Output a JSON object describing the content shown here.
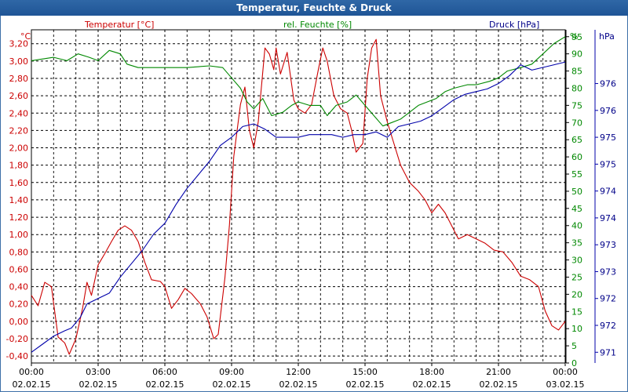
{
  "window": {
    "title": "Temperatur, Feuchte & Druck"
  },
  "colors": {
    "temperature": "#cc0000",
    "humidity": "#008800",
    "pressure": "#0000aa"
  },
  "chart_data": {
    "type": "line",
    "title": "Temperatur, Feuchte & Druck",
    "grid": true,
    "axes": {
      "temperature": {
        "label": "Temperatur [°C]",
        "unit": "°C",
        "ylim": [
          -0.48,
          3.36
        ],
        "ticks": [
          "-0,40",
          "-0,20",
          "0,00",
          "0,20",
          "0,40",
          "0,60",
          "0,80",
          "1,00",
          "1,20",
          "1,40",
          "1,60",
          "1,80",
          "2,00",
          "2,20",
          "2,40",
          "2,60",
          "2,80",
          "3,00",
          "3,20"
        ]
      },
      "humidity": {
        "label": "rel. Feuchte [%]",
        "unit": "%",
        "ylim": [
          0,
          97
        ],
        "ticks": [
          "0",
          "5",
          "10",
          "15",
          "20",
          "25",
          "30",
          "35",
          "40",
          "45",
          "50",
          "55",
          "60",
          "65",
          "70",
          "75",
          "80",
          "85",
          "90",
          "95"
        ]
      },
      "pressure": {
        "label": "Druck [hPa]",
        "unit": "hPa",
        "ylim": [
          970.8,
          977.0
        ],
        "tick_labels": [
          "971",
          "972",
          "972",
          "973",
          "973",
          "974",
          "974",
          "975",
          "975",
          "976",
          "976"
        ],
        "tick_values": [
          971.0,
          971.5,
          972.0,
          972.5,
          973.0,
          973.5,
          974.0,
          974.5,
          975.0,
          975.5,
          976.0
        ]
      }
    },
    "x_labels": [
      {
        "time": "00:00",
        "date": "02.02.15"
      },
      {
        "time": "03:00",
        "date": "02.02.15"
      },
      {
        "time": "06:00",
        "date": "02.02.15"
      },
      {
        "time": "09:00",
        "date": "02.02.15"
      },
      {
        "time": "12:00",
        "date": "02.02.15"
      },
      {
        "time": "15:00",
        "date": "02.02.15"
      },
      {
        "time": "18:00",
        "date": "02.02.15"
      },
      {
        "time": "21:00",
        "date": "02.02.15"
      },
      {
        "time": "00:00",
        "date": "03.02.15"
      }
    ],
    "x_range_hours": [
      0,
      24
    ],
    "series": [
      {
        "name": "Temperatur [°C]",
        "axis": "temperature",
        "points": [
          [
            0,
            0.3
          ],
          [
            0.3,
            0.18
          ],
          [
            0.6,
            0.45
          ],
          [
            0.9,
            0.4
          ],
          [
            1.2,
            -0.18
          ],
          [
            1.5,
            -0.25
          ],
          [
            1.7,
            -0.38
          ],
          [
            2.0,
            -0.2
          ],
          [
            2.3,
            0.15
          ],
          [
            2.5,
            0.45
          ],
          [
            2.7,
            0.3
          ],
          [
            3.0,
            0.65
          ],
          [
            3.3,
            0.78
          ],
          [
            3.6,
            0.92
          ],
          [
            3.9,
            1.05
          ],
          [
            4.2,
            1.1
          ],
          [
            4.5,
            1.05
          ],
          [
            4.8,
            0.92
          ],
          [
            5.1,
            0.68
          ],
          [
            5.4,
            0.48
          ],
          [
            5.8,
            0.46
          ],
          [
            6.0,
            0.4
          ],
          [
            6.3,
            0.15
          ],
          [
            6.6,
            0.25
          ],
          [
            6.9,
            0.38
          ],
          [
            7.2,
            0.32
          ],
          [
            7.6,
            0.2
          ],
          [
            7.9,
            0.05
          ],
          [
            8.2,
            -0.2
          ],
          [
            8.4,
            -0.15
          ],
          [
            8.7,
            0.5
          ],
          [
            8.9,
            1.1
          ],
          [
            9.1,
            1.9
          ],
          [
            9.4,
            2.5
          ],
          [
            9.6,
            2.7
          ],
          [
            9.8,
            2.2
          ],
          [
            10.0,
            2.0
          ],
          [
            10.2,
            2.3
          ],
          [
            10.5,
            3.15
          ],
          [
            10.7,
            3.08
          ],
          [
            10.9,
            2.9
          ],
          [
            11.0,
            3.15
          ],
          [
            11.2,
            2.85
          ],
          [
            11.5,
            3.1
          ],
          [
            11.8,
            2.55
          ],
          [
            12.0,
            2.45
          ],
          [
            12.3,
            2.4
          ],
          [
            12.6,
            2.5
          ],
          [
            12.9,
            2.9
          ],
          [
            13.1,
            3.15
          ],
          [
            13.3,
            3.0
          ],
          [
            13.6,
            2.6
          ],
          [
            13.9,
            2.45
          ],
          [
            14.2,
            2.4
          ],
          [
            14.4,
            2.2
          ],
          [
            14.6,
            1.95
          ],
          [
            14.9,
            2.05
          ],
          [
            15.1,
            2.8
          ],
          [
            15.3,
            3.15
          ],
          [
            15.5,
            3.25
          ],
          [
            15.7,
            2.6
          ],
          [
            16.0,
            2.3
          ],
          [
            16.3,
            2.05
          ],
          [
            16.6,
            1.8
          ],
          [
            17.0,
            1.6
          ],
          [
            17.4,
            1.5
          ],
          [
            17.7,
            1.4
          ],
          [
            18.0,
            1.25
          ],
          [
            18.3,
            1.35
          ],
          [
            18.6,
            1.25
          ],
          [
            18.9,
            1.1
          ],
          [
            19.2,
            0.95
          ],
          [
            19.6,
            1.0
          ],
          [
            20.0,
            0.95
          ],
          [
            20.4,
            0.9
          ],
          [
            20.8,
            0.82
          ],
          [
            21.2,
            0.8
          ],
          [
            21.6,
            0.68
          ],
          [
            22.0,
            0.52
          ],
          [
            22.4,
            0.48
          ],
          [
            22.8,
            0.4
          ],
          [
            23.1,
            0.12
          ],
          [
            23.4,
            -0.05
          ],
          [
            23.7,
            -0.1
          ],
          [
            24.0,
            0.0
          ]
        ]
      },
      {
        "name": "rel. Feuchte [%]",
        "axis": "humidity",
        "points": [
          [
            0,
            88
          ],
          [
            1.0,
            89
          ],
          [
            1.6,
            88
          ],
          [
            2.1,
            90
          ],
          [
            2.6,
            89
          ],
          [
            3.0,
            88
          ],
          [
            3.5,
            91
          ],
          [
            4.0,
            90
          ],
          [
            4.3,
            87
          ],
          [
            4.8,
            86
          ],
          [
            6.0,
            86
          ],
          [
            7.0,
            86
          ],
          [
            8.0,
            86.5
          ],
          [
            8.6,
            86
          ],
          [
            9.0,
            83
          ],
          [
            9.4,
            80
          ],
          [
            9.7,
            76
          ],
          [
            10.0,
            74
          ],
          [
            10.4,
            77
          ],
          [
            10.8,
            72
          ],
          [
            11.3,
            73
          ],
          [
            11.7,
            75
          ],
          [
            12.0,
            76
          ],
          [
            12.5,
            75
          ],
          [
            13.0,
            75
          ],
          [
            13.3,
            72
          ],
          [
            13.7,
            75
          ],
          [
            14.2,
            76
          ],
          [
            14.6,
            78
          ],
          [
            15.0,
            75
          ],
          [
            15.4,
            72
          ],
          [
            15.8,
            69
          ],
          [
            16.2,
            70
          ],
          [
            16.6,
            71
          ],
          [
            17.0,
            73
          ],
          [
            17.4,
            75
          ],
          [
            17.8,
            76
          ],
          [
            18.2,
            77
          ],
          [
            18.6,
            79
          ],
          [
            19.0,
            80
          ],
          [
            19.6,
            81
          ],
          [
            20.0,
            81
          ],
          [
            20.6,
            82
          ],
          [
            21.0,
            83
          ],
          [
            21.4,
            85
          ],
          [
            22.0,
            86
          ],
          [
            22.5,
            87
          ],
          [
            23.0,
            90
          ],
          [
            23.5,
            93
          ],
          [
            24.0,
            95
          ]
        ]
      },
      {
        "name": "Druck [hPa]",
        "axis": "pressure",
        "points": [
          [
            0,
            971.0
          ],
          [
            0.5,
            971.15
          ],
          [
            1.0,
            971.3
          ],
          [
            1.5,
            971.4
          ],
          [
            1.8,
            971.45
          ],
          [
            2.2,
            971.65
          ],
          [
            2.5,
            971.9
          ],
          [
            3.0,
            972.0
          ],
          [
            3.5,
            972.1
          ],
          [
            4.0,
            972.4
          ],
          [
            4.5,
            972.65
          ],
          [
            5.0,
            972.9
          ],
          [
            5.5,
            973.2
          ],
          [
            6.0,
            973.4
          ],
          [
            6.5,
            973.75
          ],
          [
            7.0,
            974.05
          ],
          [
            7.5,
            974.3
          ],
          [
            8.0,
            974.55
          ],
          [
            8.5,
            974.85
          ],
          [
            9.0,
            975.0
          ],
          [
            9.5,
            975.2
          ],
          [
            10.0,
            975.25
          ],
          [
            10.5,
            975.15
          ],
          [
            11.0,
            975.0
          ],
          [
            11.5,
            975.0
          ],
          [
            12.0,
            975.0
          ],
          [
            12.5,
            975.05
          ],
          [
            13.0,
            975.05
          ],
          [
            13.5,
            975.05
          ],
          [
            14.0,
            975.0
          ],
          [
            14.5,
            975.05
          ],
          [
            15.0,
            975.05
          ],
          [
            15.5,
            975.1
          ],
          [
            16.0,
            975.0
          ],
          [
            16.5,
            975.2
          ],
          [
            17.0,
            975.25
          ],
          [
            17.5,
            975.3
          ],
          [
            18.0,
            975.4
          ],
          [
            18.5,
            975.55
          ],
          [
            19.0,
            975.7
          ],
          [
            19.5,
            975.8
          ],
          [
            20.0,
            975.85
          ],
          [
            20.5,
            975.9
          ],
          [
            21.0,
            976.0
          ],
          [
            21.5,
            976.15
          ],
          [
            22.0,
            976.35
          ],
          [
            22.5,
            976.25
          ],
          [
            23.0,
            976.3
          ],
          [
            23.5,
            976.35
          ],
          [
            24.0,
            976.4
          ]
        ]
      }
    ]
  }
}
